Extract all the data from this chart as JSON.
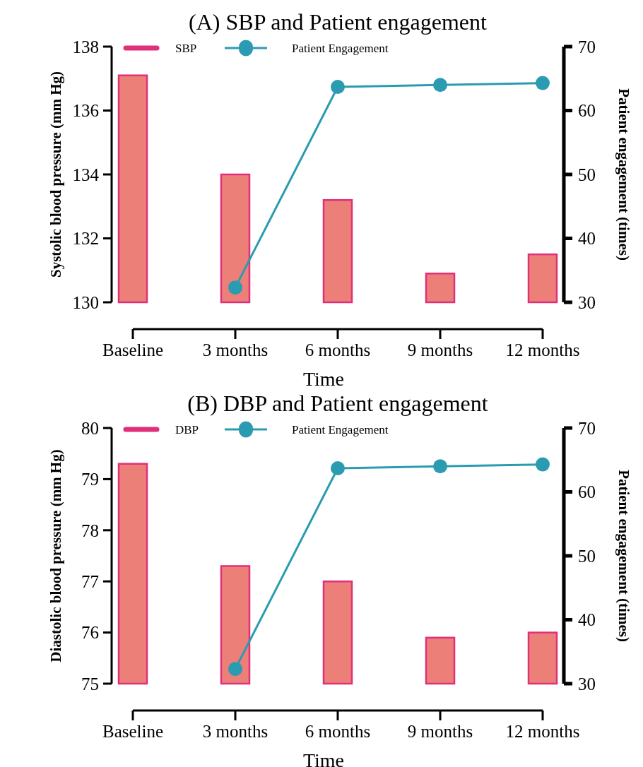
{
  "chart_data": [
    {
      "type": "bar",
      "title": "(A) SBP and Patient engagement",
      "xlabel": "Time",
      "ylabel": "Systolic blood pressure (mm Hg)",
      "y2label": "Patient engagement (times)",
      "categories": [
        "Baseline",
        "3 months",
        "6 months",
        "9 months",
        "12 months"
      ],
      "series": [
        {
          "name": "SBP",
          "color": "#ec7f78",
          "values": [
            137.1,
            134.0,
            133.2,
            130.9,
            131.5
          ]
        },
        {
          "name": "Patient Engagement",
          "type": "line",
          "axis": "y2",
          "color": "#2a9bb0",
          "values": [
            null,
            32.3,
            63.7,
            64.0,
            64.3
          ]
        }
      ],
      "ylim": [
        130,
        138
      ],
      "yticks": [
        130,
        132,
        134,
        136,
        138
      ],
      "y2lim": [
        30,
        70
      ],
      "y2ticks": [
        30,
        40,
        50,
        60,
        70
      ],
      "legend": "top left",
      "marker": "circle",
      "grid": false
    },
    {
      "type": "bar",
      "title": "(B) DBP and Patient engagement",
      "xlabel": "Time",
      "ylabel": "Diastolic blood pressure (mm Hg)",
      "y2label": "Patient engagement (times)",
      "categories": [
        "Baseline",
        "3 months",
        "6 months",
        "9 months",
        "12 months"
      ],
      "series": [
        {
          "name": "DBP",
          "color": "#ec7f78",
          "values": [
            79.3,
            77.3,
            77.0,
            75.9,
            76.0
          ]
        },
        {
          "name": "Patient Engagement",
          "type": "line",
          "axis": "y2",
          "color": "#2a9bb0",
          "values": [
            null,
            32.3,
            63.7,
            64.0,
            64.3
          ]
        }
      ],
      "ylim": [
        75,
        80
      ],
      "yticks": [
        75,
        76,
        77,
        78,
        79,
        80
      ],
      "y2lim": [
        30,
        70
      ],
      "y2ticks": [
        30,
        40,
        50,
        60,
        70
      ],
      "legend": "top left",
      "marker": "circle",
      "grid": false
    }
  ]
}
